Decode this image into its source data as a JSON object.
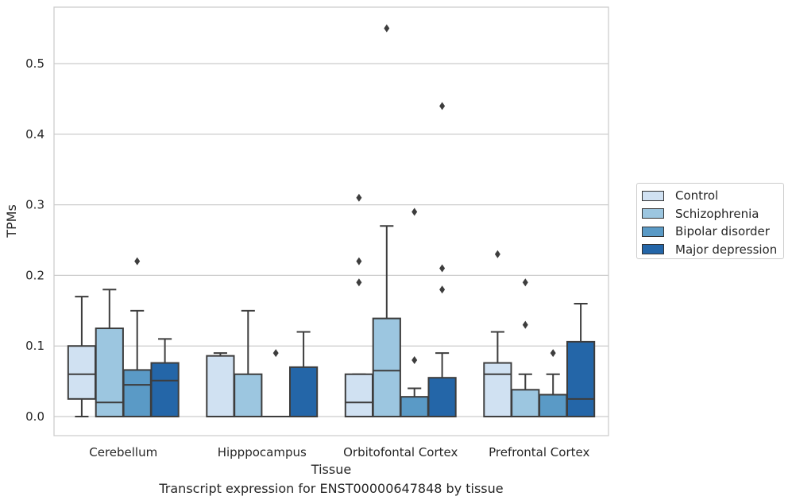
{
  "chart_data": {
    "type": "box",
    "caption": "Transcript expression for ENST00000647848 by tissue",
    "xlabel": "Tissue",
    "ylabel": "TPMs",
    "categories": [
      "Cerebellum",
      "Hipppocampus",
      "Orbitofontal Cortex",
      "Prefrontal Cortex"
    ],
    "ylim": [
      -0.027,
      0.58
    ],
    "yticks": [
      0.0,
      0.1,
      0.2,
      0.3,
      0.4,
      0.5
    ],
    "ytick_labels": [
      "0.0",
      "0.1",
      "0.2",
      "0.3",
      "0.4",
      "0.5"
    ],
    "grid": "horizontal",
    "legend_position": "right",
    "series": [
      {
        "name": "Control",
        "color": "#d0e1f2",
        "boxes": [
          {
            "whislo": 0.0,
            "q1": 0.025,
            "med": 0.06,
            "q3": 0.1,
            "whishi": 0.17,
            "fliers": []
          },
          {
            "whislo": 0.0,
            "q1": 0.0,
            "med": 0.0,
            "q3": 0.086,
            "whishi": 0.09,
            "fliers": []
          },
          {
            "whislo": 0.0,
            "q1": 0.0,
            "med": 0.02,
            "q3": 0.06,
            "whishi": 0.06,
            "fliers": [
              0.19,
              0.22,
              0.31
            ]
          },
          {
            "whislo": 0.0,
            "q1": 0.0,
            "med": 0.06,
            "q3": 0.076,
            "whishi": 0.12,
            "fliers": [
              0.23
            ]
          }
        ]
      },
      {
        "name": "Schizophrenia",
        "color": "#9cc6e0",
        "boxes": [
          {
            "whislo": 0.0,
            "q1": 0.0,
            "med": 0.02,
            "q3": 0.125,
            "whishi": 0.18,
            "fliers": []
          },
          {
            "whislo": 0.0,
            "q1": 0.0,
            "med": 0.0,
            "q3": 0.06,
            "whishi": 0.15,
            "fliers": []
          },
          {
            "whislo": 0.0,
            "q1": 0.0,
            "med": 0.065,
            "q3": 0.139,
            "whishi": 0.27,
            "fliers": [
              0.55
            ]
          },
          {
            "whislo": 0.0,
            "q1": 0.0,
            "med": 0.0,
            "q3": 0.038,
            "whishi": 0.06,
            "fliers": [
              0.13,
              0.19
            ]
          }
        ]
      },
      {
        "name": "Bipolar disorder",
        "color": "#5a9ac6",
        "boxes": [
          {
            "whislo": 0.0,
            "q1": 0.0,
            "med": 0.045,
            "q3": 0.066,
            "whishi": 0.15,
            "fliers": [
              0.22
            ]
          },
          {
            "whislo": 0.0,
            "q1": 0.0,
            "med": 0.0,
            "q3": 0.0,
            "whishi": 0.0,
            "fliers": [
              0.09
            ]
          },
          {
            "whislo": 0.0,
            "q1": 0.0,
            "med": 0.0,
            "q3": 0.028,
            "whishi": 0.04,
            "fliers": [
              0.08,
              0.29
            ]
          },
          {
            "whislo": 0.0,
            "q1": 0.0,
            "med": 0.0,
            "q3": 0.031,
            "whishi": 0.06,
            "fliers": [
              0.09
            ]
          }
        ]
      },
      {
        "name": "Major depression",
        "color": "#2466a8",
        "boxes": [
          {
            "whislo": 0.0,
            "q1": 0.0,
            "med": 0.051,
            "q3": 0.076,
            "whishi": 0.11,
            "fliers": []
          },
          {
            "whislo": 0.0,
            "q1": 0.0,
            "med": 0.0,
            "q3": 0.07,
            "whishi": 0.12,
            "fliers": []
          },
          {
            "whislo": 0.0,
            "q1": 0.0,
            "med": 0.0,
            "q3": 0.055,
            "whishi": 0.09,
            "fliers": [
              0.18,
              0.21,
              0.44
            ]
          },
          {
            "whislo": 0.0,
            "q1": 0.0,
            "med": 0.025,
            "q3": 0.106,
            "whishi": 0.16,
            "fliers": []
          }
        ]
      }
    ]
  }
}
